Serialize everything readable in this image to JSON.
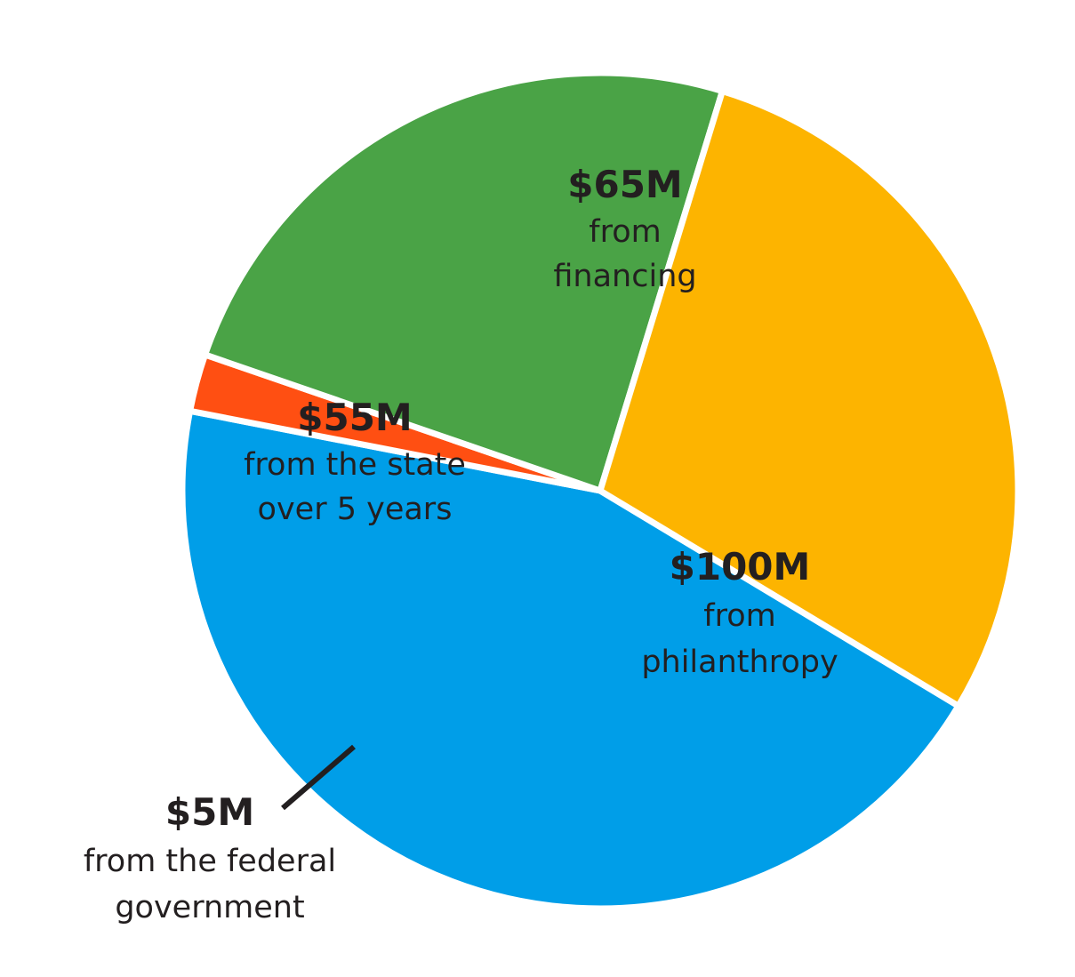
{
  "chart_data": {
    "type": "pie",
    "unit": "$M",
    "slices": [
      {
        "value": 100,
        "amount_label": "$100M",
        "desc_lines": [
          "from",
          "philanthropy"
        ],
        "color": "#009ee8"
      },
      {
        "value": 5,
        "amount_label": "$5M",
        "desc_lines": [
          "from the federal",
          "government"
        ],
        "color": "#ff4f12"
      },
      {
        "value": 55,
        "amount_label": "$55M",
        "desc_lines": [
          "from the state",
          "over 5 years"
        ],
        "color": "#4aa346"
      },
      {
        "value": 65,
        "amount_label": "$65M",
        "desc_lines": [
          "from",
          "financing"
        ],
        "color": "#fdb400"
      }
    ],
    "legend": "none"
  }
}
